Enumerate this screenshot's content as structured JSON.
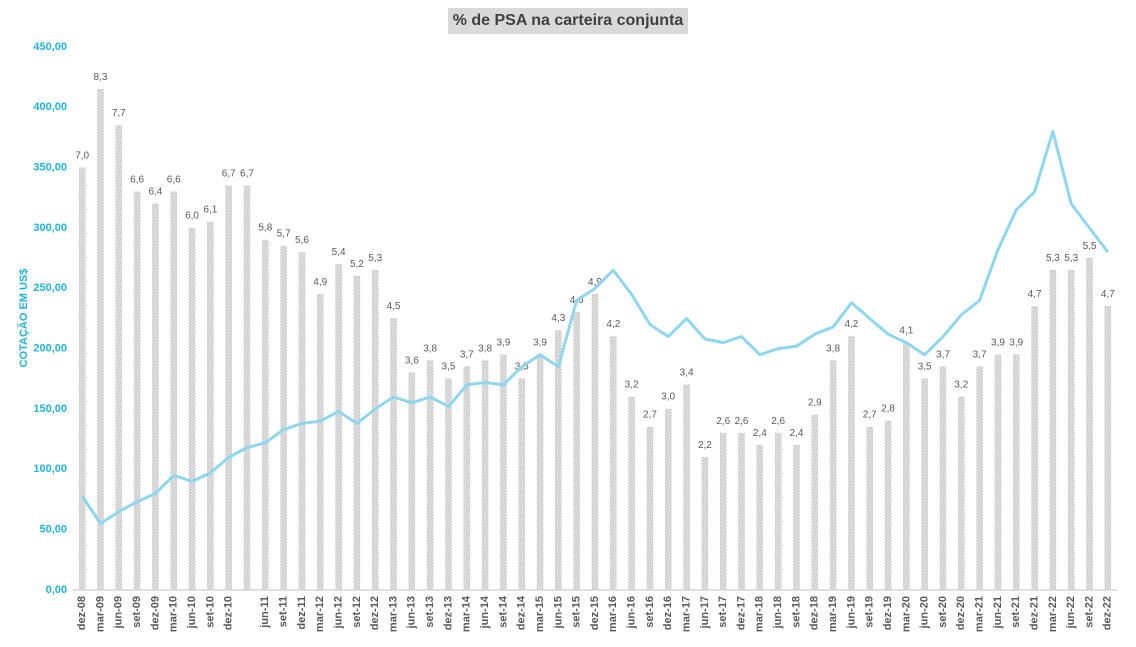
{
  "chart_data": {
    "type": "bar_line",
    "title": "% de PSA na carteira conjunta",
    "y_label": "COTAÇÃO EM US$",
    "categories": [
      "dez-08",
      "mar-09",
      "jun-09",
      "set-09",
      "dez-09",
      "mar-10",
      "jun-10",
      "set-10",
      "dez-10",
      null,
      "jun-11",
      "set-11",
      "dez-11",
      "mar-12",
      "jun-12",
      "set-12",
      "dez-12",
      "mar-13",
      "jun-13",
      "set-13",
      "dez-13",
      "mar-14",
      "jun-14",
      "set-14",
      "dez-14",
      "mar-15",
      "jun-15",
      "set-15",
      "dez-15",
      "mar-16",
      "jun-16",
      "set-16",
      "dez-16",
      "mar-17",
      "jun-17",
      "set-17",
      "dez-17",
      "mar-18",
      "jun-18",
      "set-18",
      "dez-18",
      "mar-19",
      "jun-19",
      "set-19",
      "dez-19",
      "mar-20",
      "jun-20",
      "set-20",
      "dez-20",
      "mar-21",
      "jun-21",
      "set-21",
      "dez-21",
      "mar-22",
      "jun-22",
      "set-22",
      "dez-22"
    ],
    "series": [
      {
        "name": "% PSA",
        "type": "bar",
        "axis": "y2",
        "color": "#d9d9d9",
        "values": [
          7.0,
          8.3,
          7.7,
          6.6,
          6.4,
          6.6,
          6.0,
          6.1,
          6.7,
          6.7,
          5.8,
          5.7,
          5.6,
          4.9,
          5.4,
          5.2,
          5.3,
          4.5,
          3.6,
          3.8,
          3.5,
          3.7,
          3.8,
          3.9,
          3.5,
          3.9,
          4.3,
          4.6,
          4.9,
          4.2,
          3.2,
          2.7,
          3.0,
          3.4,
          2.2,
          2.6,
          2.6,
          2.4,
          2.6,
          2.4,
          2.9,
          3.8,
          4.2,
          2.7,
          2.8,
          4.1,
          3.5,
          3.7,
          3.2,
          3.7,
          3.9,
          3.9,
          4.7,
          5.3,
          5.3,
          5.5,
          4.7
        ],
        "value_labels": [
          "7,0",
          "8,3",
          "7,7",
          "6,6",
          "6,4",
          "6,6",
          "6,0",
          "6,1",
          "6,7",
          "6,7",
          "5,8",
          "5,7",
          "5,6",
          "4,9",
          "5,4",
          "5,2",
          "5,3",
          "4,5",
          "3,6",
          "3,8",
          "3,5",
          "3,7",
          "3,8",
          "3,9",
          "3,5",
          "3,9",
          "4,3",
          "4,6",
          "4,9",
          "4,2",
          "3,2",
          "2,7",
          "3,0",
          "3,4",
          "2,2",
          "2,6",
          "2,6",
          "2,4",
          "2,6",
          "2,4",
          "2,9",
          "3,8",
          "4,2",
          "2,7",
          "2,8",
          "4,1",
          "3,5",
          "3,7",
          "3,2",
          "3,7",
          "3,9",
          "3,9",
          "4,7",
          "5,3",
          "5,3",
          "5,5",
          "4,7"
        ]
      },
      {
        "name": "Cotação",
        "type": "line",
        "color": "#8fd6ef",
        "values": [
          78,
          55,
          65,
          73,
          80,
          95,
          90,
          97,
          110,
          118,
          122,
          133,
          138,
          140,
          148,
          138,
          150,
          160,
          155,
          160,
          152,
          170,
          172,
          170,
          185,
          195,
          185,
          240,
          250,
          265,
          245,
          220,
          210,
          225,
          208,
          205,
          210,
          195,
          200,
          202,
          212,
          218,
          238,
          225,
          212,
          205,
          195,
          210,
          228,
          240,
          282,
          315,
          330,
          380,
          320,
          300,
          280
        ]
      }
    ],
    "ylim": [
      0,
      450
    ],
    "yticks": [
      {
        "value": 0,
        "label": "0,00"
      },
      {
        "value": 50,
        "label": "50,00"
      },
      {
        "value": 100,
        "label": "100,00"
      },
      {
        "value": 150,
        "label": "150,00"
      },
      {
        "value": 200,
        "label": "200,00"
      },
      {
        "value": 250,
        "label": "250,00"
      },
      {
        "value": 300,
        "label": "300,00"
      },
      {
        "value": 350,
        "label": "350,00"
      },
      {
        "value": 400,
        "label": "400,00"
      },
      {
        "value": 450,
        "label": "450,00"
      }
    ],
    "y2lim": [
      0,
      9
    ]
  }
}
